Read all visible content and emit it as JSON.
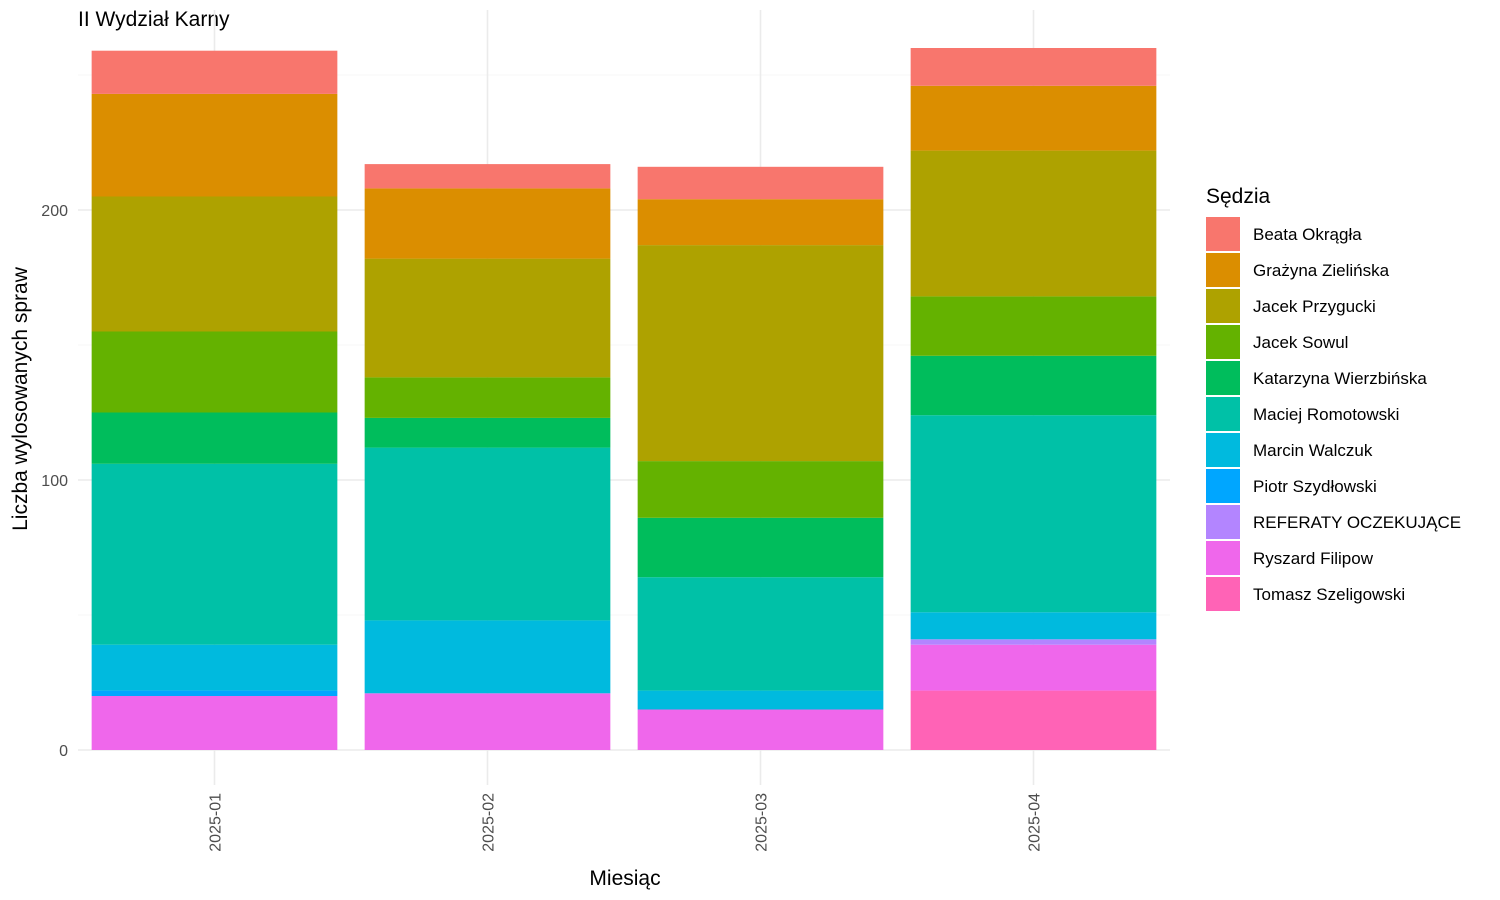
{
  "chart_data": {
    "type": "bar",
    "stacked": true,
    "title": "II Wydział Karny",
    "xlabel": "Miesiąc",
    "ylabel": "Liczba wylosowanych spraw",
    "categories": [
      "2025-01",
      "2025-02",
      "2025-03",
      "2025-04"
    ],
    "ylim": [
      0,
      260
    ],
    "yticks": [
      0,
      100,
      200
    ],
    "grid": true,
    "legend": {
      "title": "Sędzia",
      "position": "right"
    },
    "series": [
      {
        "name": "Beata Okrągła",
        "color": "#F8766D",
        "values": [
          16,
          9,
          12,
          14
        ]
      },
      {
        "name": "Grażyna Zielińska",
        "color": "#DB8E00",
        "values": [
          38,
          26,
          17,
          24
        ]
      },
      {
        "name": "Jacek Przygucki",
        "color": "#AEA200",
        "values": [
          50,
          44,
          80,
          54
        ]
      },
      {
        "name": "Jacek Sowul",
        "color": "#64B200",
        "values": [
          30,
          15,
          21,
          22
        ]
      },
      {
        "name": "Katarzyna Wierzbińska",
        "color": "#00BD5C",
        "values": [
          19,
          11,
          22,
          22
        ]
      },
      {
        "name": "Maciej Romotowski",
        "color": "#00C1A7",
        "values": [
          67,
          64,
          42,
          73
        ]
      },
      {
        "name": "Marcin Walczuk",
        "color": "#00BADE",
        "values": [
          17,
          27,
          7,
          10
        ]
      },
      {
        "name": "Piotr Szydłowski",
        "color": "#00A6FF",
        "values": [
          2,
          0,
          0,
          0
        ]
      },
      {
        "name": "REFERATY OCZEKUJĄCE",
        "color": "#B385FF",
        "values": [
          0,
          0,
          0,
          2
        ]
      },
      {
        "name": "Ryszard Filipow",
        "color": "#EF67EB",
        "values": [
          20,
          21,
          15,
          17
        ]
      },
      {
        "name": "Tomasz Szeligowski",
        "color": "#FF63B6",
        "values": [
          0,
          0,
          0,
          22
        ]
      }
    ]
  }
}
